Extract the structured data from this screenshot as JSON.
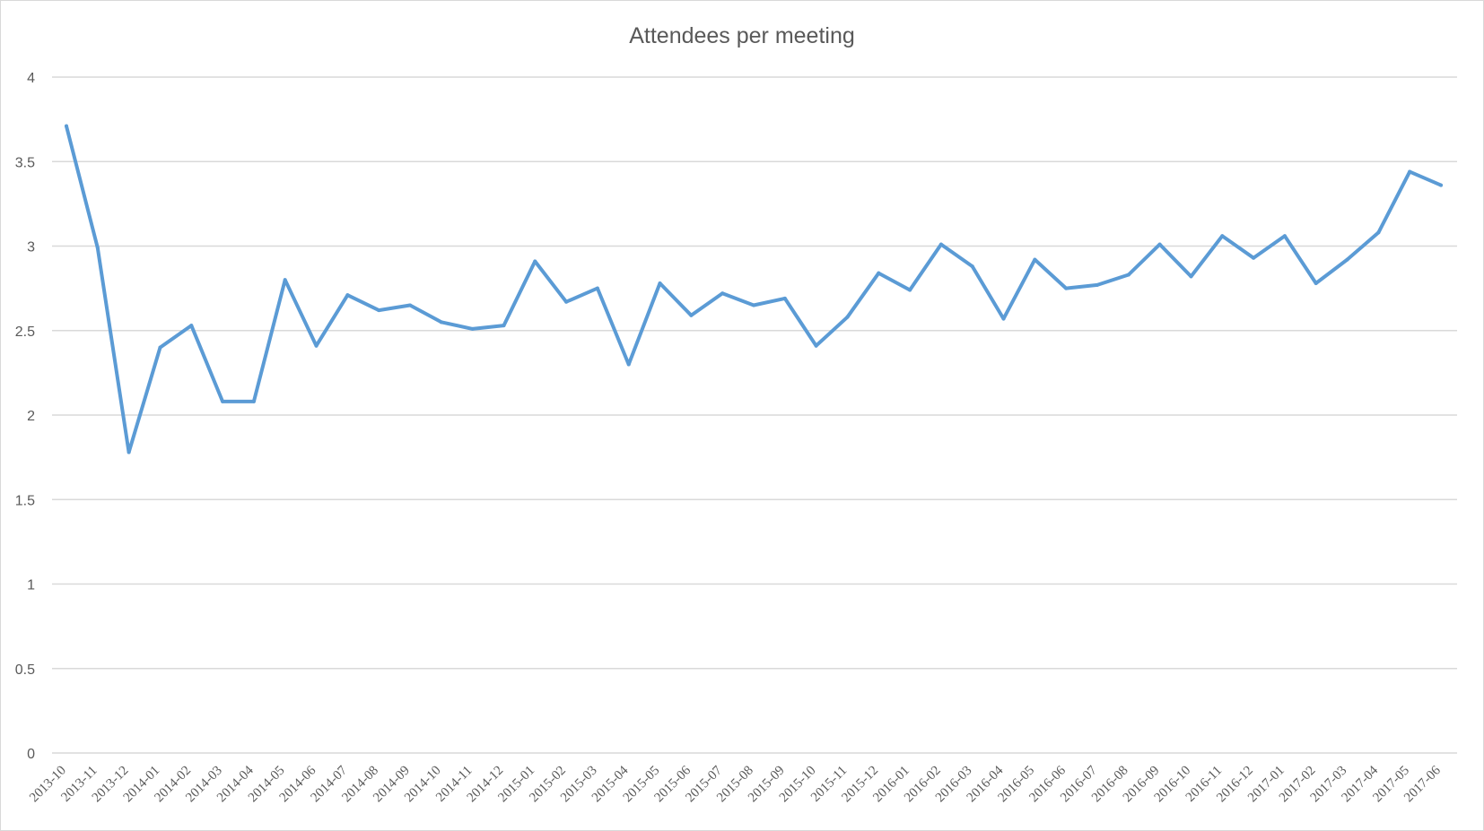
{
  "chart_data": {
    "type": "line",
    "title": "Attendees per meeting",
    "xlabel": "",
    "ylabel": "",
    "ylim": [
      0,
      4
    ],
    "yticks": [
      0,
      0.5,
      1,
      1.5,
      2,
      2.5,
      3,
      3.5,
      4
    ],
    "ytick_labels": [
      "0",
      "0.5",
      "1",
      "1.5",
      "2",
      "2.5",
      "3",
      "3.5",
      "4"
    ],
    "grid": true,
    "legend": "none",
    "categories": [
      "2013-10",
      "2013-11",
      "2013-12",
      "2014-01",
      "2014-02",
      "2014-03",
      "2014-04",
      "2014-05",
      "2014-06",
      "2014-07",
      "2014-08",
      "2014-09",
      "2014-10",
      "2014-11",
      "2014-12",
      "2015-01",
      "2015-02",
      "2015-03",
      "2015-04",
      "2015-05",
      "2015-06",
      "2015-07",
      "2015-08",
      "2015-09",
      "2015-10",
      "2015-11",
      "2015-12",
      "2016-01",
      "2016-02",
      "2016-03",
      "2016-04",
      "2016-05",
      "2016-06",
      "2016-07",
      "2016-08",
      "2016-09",
      "2016-10",
      "2016-11",
      "2016-12",
      "2017-01",
      "2017-02",
      "2017-03",
      "2017-04",
      "2017-05",
      "2017-06"
    ],
    "series": [
      {
        "color": "#5b9bd5",
        "values": [
          3.71,
          2.99,
          1.78,
          2.4,
          2.53,
          2.08,
          2.08,
          2.8,
          2.41,
          2.71,
          2.62,
          2.65,
          2.55,
          2.51,
          2.53,
          2.91,
          2.67,
          2.75,
          2.3,
          2.78,
          2.59,
          2.72,
          2.65,
          2.69,
          2.41,
          2.58,
          2.84,
          2.74,
          3.01,
          2.88,
          2.57,
          2.92,
          2.75,
          2.77,
          2.83,
          3.01,
          2.82,
          3.06,
          2.93,
          3.06,
          2.78,
          2.92,
          3.08,
          3.44,
          3.36
        ]
      }
    ]
  }
}
